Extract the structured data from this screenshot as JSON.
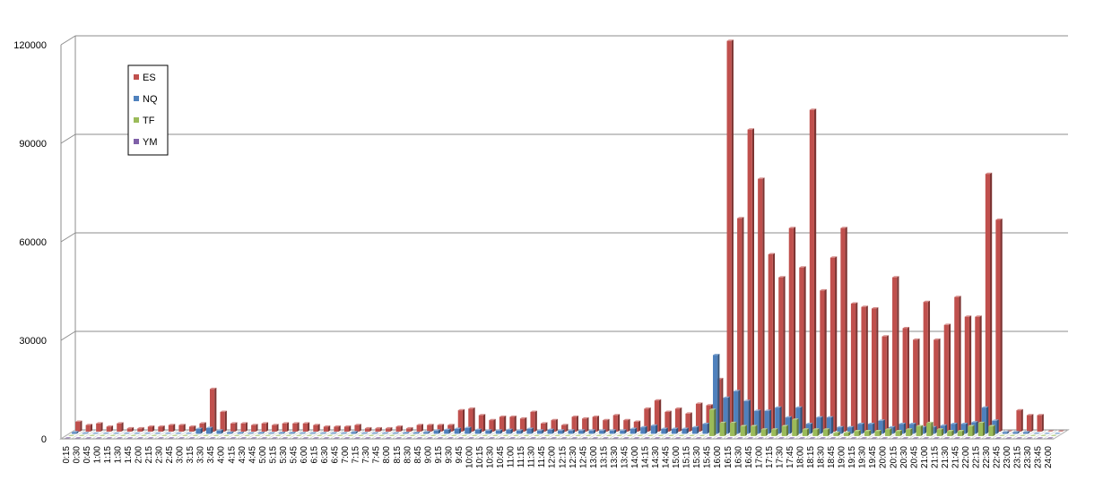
{
  "chart_data": {
    "type": "bar",
    "variant": "3d-clustered-column",
    "title": "",
    "xlabel": "",
    "ylabel": "",
    "ylim": [
      0,
      120000
    ],
    "yticks": [
      "0",
      "30000",
      "60000",
      "90000",
      "120000"
    ],
    "grid": true,
    "legend_position": "top-left",
    "categories": [
      "0:15",
      "0:30",
      "0:45",
      "1:00",
      "1:15",
      "1:30",
      "1:45",
      "2:00",
      "2:15",
      "2:30",
      "2:45",
      "3:00",
      "3:15",
      "3:30",
      "3:45",
      "4:00",
      "4:15",
      "4:30",
      "4:45",
      "5:00",
      "5:15",
      "5:30",
      "5:45",
      "6:00",
      "6:15",
      "6:30",
      "6:45",
      "7:00",
      "7:15",
      "7:30",
      "7:45",
      "8:00",
      "8:15",
      "8:30",
      "8:45",
      "9:00",
      "9:15",
      "9:30",
      "9:45",
      "10:00",
      "10:15",
      "10:30",
      "10:45",
      "11:00",
      "11:15",
      "11:30",
      "11:45",
      "12:00",
      "12:15",
      "12:30",
      "12:45",
      "13:00",
      "13:15",
      "13:30",
      "13:45",
      "14:00",
      "14:15",
      "14:30",
      "14:45",
      "15:00",
      "15:15",
      "15:30",
      "15:45",
      "16:00",
      "16:15",
      "16:30",
      "16:45",
      "17:00",
      "17:15",
      "17:30",
      "17:45",
      "18:00",
      "18:15",
      "18:30",
      "18:45",
      "19:00",
      "19:15",
      "19:30",
      "19:45",
      "20:00",
      "20:15",
      "20:30",
      "20:45",
      "21:00",
      "21:15",
      "21:30",
      "21:45",
      "22:00",
      "22:15",
      "22:30",
      "22:45",
      "23:00",
      "23:15",
      "23:30",
      "23:45",
      "24:00"
    ],
    "series": [
      {
        "name": "YM",
        "color": "#7f60a8",
        "values": [
          0,
          0,
          0,
          0,
          0,
          0,
          0,
          0,
          0,
          0,
          0,
          0,
          0,
          0,
          0,
          0,
          0,
          0,
          0,
          0,
          0,
          0,
          0,
          0,
          0,
          0,
          0,
          0,
          0,
          0,
          0,
          0,
          0,
          0,
          0,
          0,
          0,
          0,
          0,
          0,
          0,
          0,
          0,
          0,
          0,
          0,
          0,
          0,
          0,
          0,
          0,
          0,
          0,
          0,
          0,
          0,
          0,
          0,
          0,
          0,
          0,
          0,
          0,
          0,
          0,
          0,
          0,
          0,
          0,
          0,
          0,
          0,
          0,
          0,
          0,
          0,
          0,
          0,
          0,
          0,
          0,
          0,
          0,
          0,
          0,
          0,
          0,
          0,
          0,
          0,
          0,
          0,
          0,
          0,
          0,
          0
        ]
      },
      {
        "name": "TF",
        "color": "#9bbb59",
        "values": [
          0,
          0,
          0,
          0,
          0,
          0,
          0,
          0,
          0,
          0,
          0,
          0,
          0,
          0,
          0,
          0,
          0,
          0,
          0,
          0,
          0,
          0,
          0,
          0,
          0,
          0,
          0,
          0,
          0,
          0,
          0,
          0,
          0,
          0,
          0,
          0,
          0,
          0,
          0,
          0,
          0,
          0,
          0,
          0,
          0,
          0,
          0,
          0,
          0,
          0,
          0,
          0,
          0,
          0,
          0,
          0,
          0,
          0,
          0,
          0,
          0,
          0,
          8000,
          4000,
          4000,
          3000,
          3000,
          2000,
          2000,
          3000,
          5000,
          2000,
          2000,
          2000,
          1000,
          1000,
          1500,
          1500,
          1500,
          2000,
          1500,
          2000,
          3000,
          4000,
          2000,
          1500,
          1500,
          3000,
          4000,
          3000,
          0,
          0,
          0,
          0,
          0,
          0
        ]
      },
      {
        "name": "NQ",
        "color": "#4f81bd",
        "values": [
          500,
          200,
          100,
          100,
          100,
          100,
          100,
          100,
          100,
          100,
          100,
          100,
          1500,
          1800,
          1000,
          400,
          300,
          200,
          300,
          200,
          300,
          300,
          200,
          200,
          200,
          200,
          200,
          500,
          200,
          200,
          200,
          200,
          300,
          300,
          500,
          1000,
          1200,
          1500,
          1800,
          1200,
          1000,
          1000,
          1200,
          1000,
          1500,
          1000,
          1200,
          1000,
          1000,
          1000,
          1000,
          1000,
          1000,
          1000,
          1500,
          2000,
          2500,
          1500,
          1500,
          1500,
          2000,
          3000,
          24000,
          11000,
          13000,
          10000,
          7000,
          7000,
          8000,
          5000,
          8000,
          3000,
          5000,
          5000,
          2000,
          2000,
          3000,
          3000,
          4000,
          2000,
          3000,
          3000,
          2000,
          2000,
          2500,
          3000,
          3000,
          3500,
          8000,
          4000,
          500,
          500,
          500,
          100,
          0,
          0
        ]
      },
      {
        "name": "ES",
        "color": "#c0504d",
        "values": [
          3000,
          2000,
          2500,
          1500,
          2500,
          1000,
          1000,
          1500,
          1500,
          2000,
          2000,
          1500,
          2500,
          13000,
          6000,
          2500,
          2500,
          2000,
          2500,
          2000,
          2500,
          2500,
          2500,
          2000,
          1500,
          1500,
          1500,
          2000,
          1000,
          1000,
          1000,
          1500,
          1000,
          2000,
          2000,
          2000,
          2000,
          6500,
          7000,
          5000,
          3500,
          4500,
          4500,
          4000,
          6000,
          2500,
          3500,
          2000,
          4500,
          4000,
          4500,
          3500,
          5000,
          3500,
          3000,
          7000,
          9500,
          6000,
          7000,
          5500,
          8500,
          8000,
          16000,
          119000,
          65000,
          92000,
          77000,
          54000,
          47000,
          62000,
          50000,
          98000,
          43000,
          53000,
          62000,
          39000,
          38000,
          37500,
          29000,
          47000,
          31500,
          28000,
          39500,
          28000,
          32500,
          41000,
          35000,
          35000,
          78500,
          64500,
          0,
          6500,
          5000,
          5000,
          0,
          0
        ]
      }
    ]
  }
}
